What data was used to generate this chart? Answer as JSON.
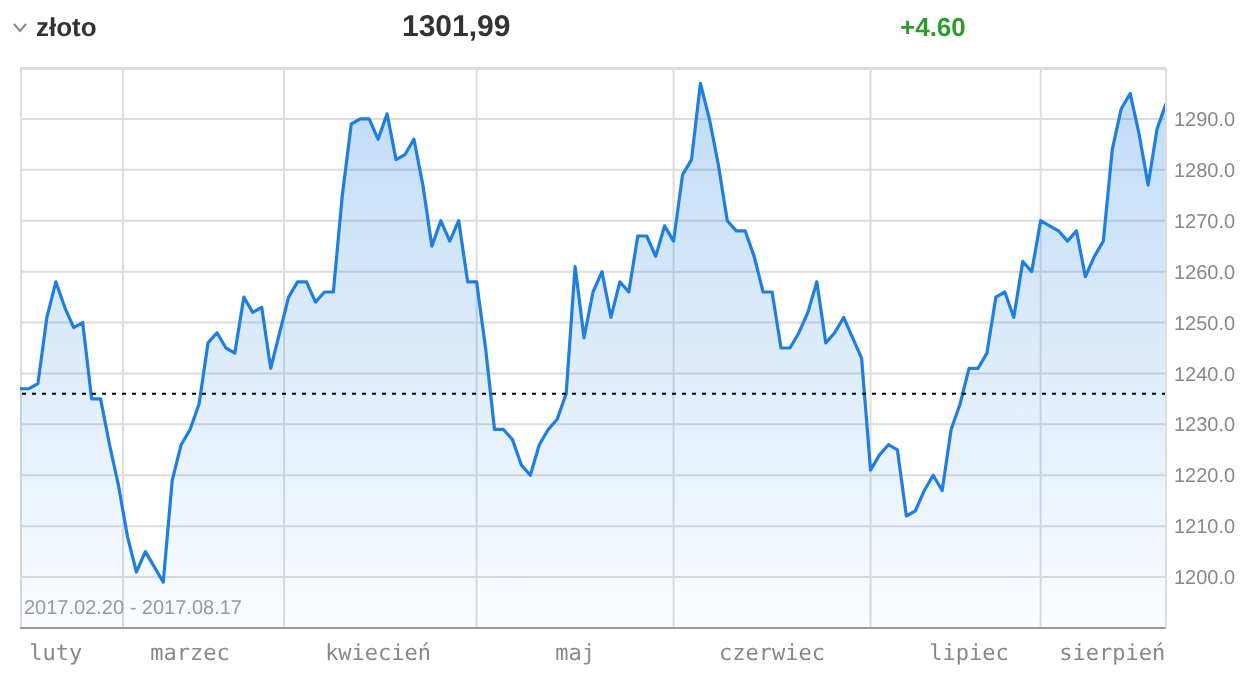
{
  "chart_data": {
    "type": "area",
    "title": "złoto",
    "subtitle": "1301,99",
    "annotations": [
      "+4.60",
      "2017.02.20 - 2017.08.17"
    ],
    "categories": [
      null,
      null,
      null,
      null,
      "luty",
      null,
      null,
      null,
      null,
      null,
      null,
      null,
      null,
      null,
      null,
      null,
      null,
      null,
      null,
      "marzec",
      null,
      null,
      null,
      null,
      null,
      null,
      null,
      null,
      null,
      null,
      null,
      null,
      null,
      null,
      null,
      null,
      null,
      null,
      null,
      null,
      "kwiecień",
      null,
      null,
      null,
      null,
      null,
      null,
      null,
      null,
      null,
      null,
      null,
      null,
      null,
      null,
      null,
      null,
      null,
      null,
      null,
      null,
      null,
      "maj",
      null,
      null,
      null,
      null,
      null,
      null,
      null,
      null,
      null,
      null,
      null,
      null,
      null,
      null,
      null,
      null,
      null,
      null,
      null,
      null,
      null,
      "czerwiec",
      null,
      null,
      null,
      null,
      null,
      null,
      null,
      null,
      null,
      null,
      null,
      null,
      null,
      null,
      null,
      null,
      null,
      null,
      null,
      null,
      null,
      "lipiec",
      null,
      null,
      null,
      null,
      null,
      null,
      null,
      null,
      null,
      null,
      null,
      null,
      null,
      null,
      null,
      "sierpień",
      null,
      null,
      null,
      null,
      null,
      null
    ],
    "series": [
      {
        "color": "#1f7fe0",
        "values": [
          1237,
          1237,
          1238,
          1251,
          1258,
          1253,
          1249,
          1250,
          1235,
          1235,
          1226,
          1218,
          1208,
          1201,
          1205,
          1202,
          1199,
          1219,
          1226,
          1229,
          1234,
          1246,
          1248,
          1245,
          1244,
          1255,
          1252,
          1253,
          1241,
          1248,
          1255,
          1258,
          1258,
          1254,
          1256,
          1256,
          1275,
          1289,
          1290,
          1290,
          1286,
          1291,
          1282,
          1283,
          1286,
          1277,
          1265,
          1270,
          1266,
          1270,
          1258,
          1258,
          1245,
          1229,
          1229,
          1227,
          1222,
          1220,
          1226,
          1229,
          1231,
          1236,
          1261,
          1247,
          1256,
          1260,
          1251,
          1258,
          1256,
          1267,
          1267,
          1263,
          1269,
          1266,
          1279,
          1282,
          1297,
          1290,
          1281,
          1270,
          1268,
          1268,
          1263,
          1256,
          1256,
          1245,
          1245,
          1248,
          1252,
          1258,
          1246,
          1248,
          1251,
          1247,
          1243,
          1221,
          1224,
          1226,
          1225,
          1212,
          1213,
          1217,
          1220,
          1217,
          1229,
          1234,
          1241,
          1241,
          1244,
          1255,
          1256,
          1251,
          1262,
          1260,
          1270,
          1269,
          1268,
          1266,
          1268,
          1259,
          1263,
          1266,
          1284,
          1292,
          1295,
          1287,
          1277,
          1288,
          1293
        ]
      }
    ],
    "ylim": [
      1190,
      1300
    ],
    "yticks": [
      {
        "value": 1200,
        "label": "1200.0"
      },
      {
        "value": 1210,
        "label": "1210.0"
      },
      {
        "value": 1220,
        "label": "1220.0"
      },
      {
        "value": 1230,
        "label": "1230.0"
      },
      {
        "value": 1240,
        "label": "1240.0"
      },
      {
        "value": 1250,
        "label": "1250.0"
      },
      {
        "value": 1260,
        "label": "1260.0"
      },
      {
        "value": 1270,
        "label": "1270.0"
      },
      {
        "value": 1280,
        "label": "1280.0"
      },
      {
        "value": 1290,
        "label": "1290.0"
      }
    ],
    "ref_lines": [
      {
        "axis": "y",
        "value": 1236,
        "color": "#000000",
        "line_style": "dotted"
      }
    ],
    "grid": true
  }
}
